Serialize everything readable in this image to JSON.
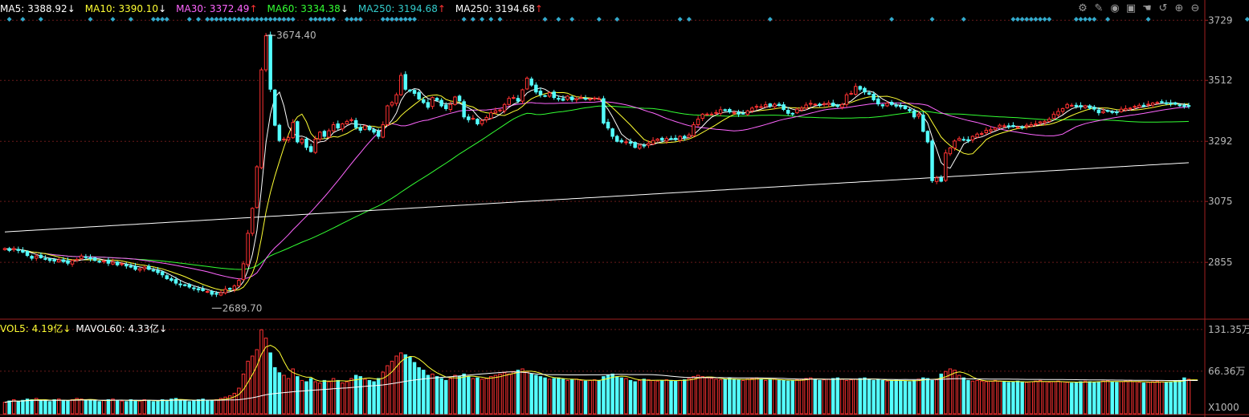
{
  "header": {
    "ma": [
      {
        "label": "MA5:",
        "value": "3388.92",
        "arrow": "↓",
        "color": "#ffffff",
        "arrow_color": "#ffffff"
      },
      {
        "label": "MA10:",
        "value": "3390.10",
        "arrow": "↓",
        "color": "#ffff33",
        "arrow_color": "#ffffff"
      },
      {
        "label": "MA30:",
        "value": "3372.49",
        "arrow": "↑",
        "color": "#ff66ff",
        "arrow_color": "#ff3333"
      },
      {
        "label": "MA60:",
        "value": "3334.38",
        "arrow": "↓",
        "color": "#33ff33",
        "arrow_color": "#ffffff"
      },
      {
        "label": "MA250:",
        "value": "3194.68",
        "arrow": "↑",
        "color": "#33cccc",
        "arrow_color": "#ff3333"
      },
      {
        "label": "MA250:",
        "value": "3194.68",
        "arrow": "↑",
        "color": "#ffffff",
        "arrow_color": "#ff3333"
      }
    ],
    "vol": [
      {
        "label": "VOL5:",
        "value": "4.19亿",
        "arrow": "↓",
        "color": "#ffff33"
      },
      {
        "label": "MAVOL60:",
        "value": "4.33亿",
        "arrow": "↓",
        "color": "#ffffff"
      }
    ]
  },
  "toolbar": [
    {
      "name": "settings-icon",
      "glyph": "⚙"
    },
    {
      "name": "pen-icon",
      "glyph": "✎"
    },
    {
      "name": "eye-icon",
      "glyph": "◉"
    },
    {
      "name": "box-icon",
      "glyph": "▣"
    },
    {
      "name": "hand-icon",
      "glyph": "☚"
    },
    {
      "name": "undo-icon",
      "glyph": "↺"
    },
    {
      "name": "zoom-in-icon",
      "glyph": "⊕"
    },
    {
      "name": "zoom-out-icon",
      "glyph": "⊖"
    }
  ],
  "chart_data": {
    "type": "candlestick",
    "price_axis": {
      "ticks": [
        3729,
        3512,
        3292,
        3075,
        2855
      ],
      "range": [
        2650,
        3750
      ]
    },
    "volume_axis": {
      "ticks": [
        "131.35万",
        "66.36万"
      ],
      "tick_values": [
        131.35,
        66.36
      ],
      "range": [
        0,
        140
      ],
      "multiplier_label": "X1000"
    },
    "annotations": {
      "high": "3674.40",
      "low": "2689.70"
    },
    "colors": {
      "up": "#ff3232",
      "down": "#54ffff",
      "ma5": "#ffffff",
      "ma10": "#ffff33",
      "ma30": "#ff66ff",
      "ma60": "#33ff33",
      "ma250": "#ffffff",
      "vol5": "#ffff33",
      "vol60": "#ffffff",
      "marker": "#33aacc",
      "grid": "#6a1a1a"
    },
    "closes": [
      2905,
      2898,
      2905,
      2898,
      2892,
      2880,
      2870,
      2878,
      2872,
      2868,
      2862,
      2860,
      2864,
      2858,
      2852,
      2862,
      2866,
      2878,
      2872,
      2868,
      2862,
      2858,
      2860,
      2852,
      2856,
      2846,
      2850,
      2842,
      2838,
      2830,
      2832,
      2838,
      2830,
      2826,
      2818,
      2810,
      2796,
      2790,
      2780,
      2774,
      2772,
      2766,
      2760,
      2756,
      2753,
      2750,
      2740,
      2740,
      2745,
      2758,
      2760,
      2770,
      2790,
      2850,
      2960,
      3050,
      3200,
      3550,
      3673,
      3480,
      3350,
      3295,
      3300,
      3305,
      3360,
      3290,
      3300,
      3270,
      3255,
      3300,
      3325,
      3310,
      3330,
      3352,
      3340,
      3355,
      3364,
      3370,
      3342,
      3332,
      3348,
      3334,
      3325,
      3310,
      3352,
      3420,
      3432,
      3460,
      3530,
      3480,
      3476,
      3465,
      3445,
      3432,
      3415,
      3450,
      3440,
      3420,
      3410,
      3425,
      3452,
      3438,
      3380,
      3370,
      3375,
      3355,
      3367,
      3378,
      3395,
      3402,
      3405,
      3425,
      3447,
      3450,
      3437,
      3478,
      3520,
      3495,
      3470,
      3460,
      3455,
      3467,
      3450,
      3446,
      3440,
      3455,
      3442,
      3446,
      3450,
      3445,
      3445,
      3448,
      3446,
      3358,
      3340,
      3310,
      3292,
      3290,
      3290,
      3285,
      3270,
      3278,
      3275,
      3285,
      3295,
      3300,
      3296,
      3302,
      3300,
      3298,
      3310,
      3304,
      3315,
      3352,
      3372,
      3390,
      3390,
      3390,
      3396,
      3406,
      3404,
      3398,
      3396,
      3390,
      3392,
      3402,
      3412,
      3418,
      3417,
      3424,
      3420,
      3426,
      3421,
      3407,
      3393,
      3392,
      3408,
      3412,
      3423,
      3429,
      3426,
      3422,
      3428,
      3430,
      3420,
      3418,
      3425,
      3460,
      3465,
      3490,
      3480,
      3470,
      3462,
      3442,
      3427,
      3420,
      3430,
      3425,
      3420,
      3417,
      3410,
      3402,
      3380,
      3390,
      3328,
      3290,
      3150,
      3160,
      3148,
      3250,
      3268,
      3293,
      3302,
      3298,
      3294,
      3310,
      3318,
      3320,
      3332,
      3334,
      3340,
      3350,
      3348,
      3346,
      3345,
      3344,
      3342,
      3350,
      3352,
      3355,
      3362,
      3364,
      3372,
      3390,
      3400,
      3410,
      3425,
      3422,
      3418,
      3416,
      3420,
      3412,
      3408,
      3395,
      3400,
      3402,
      3398,
      3396,
      3408,
      3410,
      3412,
      3418,
      3422,
      3420,
      3426,
      3430,
      3432,
      3434,
      3430,
      3428,
      3426,
      3422,
      3418,
      3420
    ],
    "volumes": [
      18,
      20,
      22,
      19,
      21,
      23,
      22,
      24,
      20,
      21,
      19,
      22,
      23,
      21,
      20,
      22,
      24,
      23,
      21,
      22,
      20,
      19,
      21,
      22,
      23,
      21,
      20,
      19,
      22,
      21,
      20,
      22,
      21,
      19,
      20,
      22,
      21,
      23,
      24,
      22,
      20,
      19,
      21,
      22,
      23,
      21,
      20,
      22,
      24,
      26,
      28,
      32,
      40,
      62,
      82,
      90,
      100,
      131,
      118,
      95,
      72,
      64,
      60,
      55,
      70,
      58,
      52,
      50,
      55,
      50,
      48,
      52,
      50,
      55,
      52,
      48,
      50,
      55,
      60,
      58,
      54,
      52,
      50,
      55,
      65,
      75,
      82,
      90,
      95,
      92,
      88,
      80,
      72,
      68,
      60,
      62,
      58,
      55,
      52,
      55,
      60,
      58,
      62,
      58,
      55,
      56,
      54,
      55,
      58,
      60,
      62,
      64,
      62,
      66,
      68,
      70,
      66,
      62,
      60,
      58,
      56,
      54,
      55,
      56,
      54,
      52,
      53,
      54,
      52,
      51,
      52,
      53,
      52,
      58,
      60,
      62,
      58,
      56,
      55,
      52,
      50,
      52,
      54,
      53,
      52,
      51,
      52,
      53,
      52,
      51,
      52,
      53,
      55,
      58,
      60,
      58,
      56,
      55,
      54,
      53,
      54,
      55,
      54,
      53,
      52,
      54,
      55,
      56,
      54,
      52,
      53,
      54,
      53,
      52,
      51,
      52,
      53,
      54,
      55,
      56,
      54,
      52,
      53,
      54,
      55,
      56,
      54,
      52,
      53,
      54,
      55,
      56,
      54,
      52,
      53,
      52,
      51,
      52,
      53,
      52,
      51,
      50,
      52,
      54,
      56,
      55,
      52,
      53,
      62,
      66,
      70,
      68,
      60,
      56,
      52,
      51,
      52,
      51,
      50,
      51,
      52,
      51,
      50,
      49,
      50,
      51,
      50,
      49,
      50,
      51,
      52,
      50,
      49,
      50,
      51,
      50,
      49,
      48,
      49,
      50,
      51,
      50,
      49,
      50,
      51,
      52,
      50,
      49,
      50,
      51,
      52,
      50,
      49,
      48,
      49,
      50,
      51,
      50,
      49,
      50,
      51,
      52,
      56,
      54,
      52,
      50
    ]
  }
}
